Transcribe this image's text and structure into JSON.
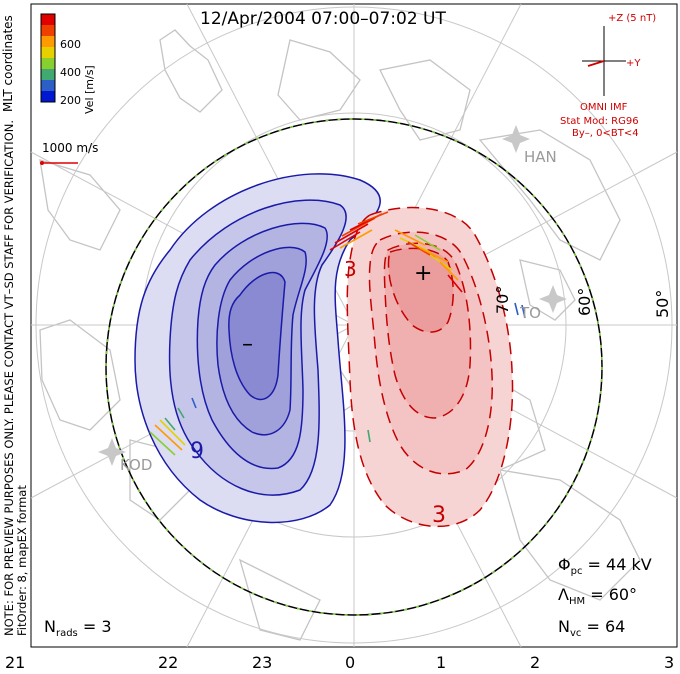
{
  "title": "12/Apr/2004 07:00–07:02 UT",
  "colorbar": {
    "label": "Vel [m/s]",
    "ticks": [
      "600",
      "400",
      "200"
    ],
    "colors": [
      "#e00000",
      "#f04000",
      "#ff9a00",
      "#e6d000",
      "#88d030",
      "#40a870",
      "#2c5ec8",
      "#0018d0"
    ]
  },
  "coord_label": "MLT coordinates",
  "scale_vector_label": "1000 m/s",
  "imf": {
    "bz_label": "+Z (5 nT)",
    "by_label": "+Y",
    "source": "OMNI IMF",
    "model": "Stat Mod: RG96",
    "condition": "By–, 0<BT<4"
  },
  "note_line1": "NOTE: FOR PREVIEW PURPOSES ONLY. PLEASE CONTACT VT–SD STAFF FOR VERIFICATION.",
  "note_line2": "FitOrder: 8, mapEX format",
  "stats": {
    "phi_symbol": "Φ",
    "phi_sub": "pc",
    "phi_value": " = 44 kV",
    "lambda_symbol": "Λ",
    "lambda_sub": "HM",
    "lambda_value": " = 60°",
    "nvc_symbol": "N",
    "nvc_sub": "vc",
    "nvc_value": " = 64",
    "nrads_symbol": "N",
    "nrads_sub": "rads",
    "nrads_value": " = 3"
  },
  "latitude_labels": [
    "70°",
    "60°",
    "50°"
  ],
  "station_labels": [
    "HAN",
    "KOD",
    "TO"
  ],
  "contour_labels": [
    "3",
    "3",
    "9"
  ],
  "pole_markers": {
    "negative": "–",
    "positive": "+"
  },
  "chart_data": {
    "type": "polar convection map",
    "x_axis_ticks": [
      "21",
      "22",
      "23",
      "0",
      "1",
      "2",
      "3"
    ],
    "potential_cells": [
      {
        "sign": "negative",
        "mlt": 23.3,
        "contours": 6
      },
      {
        "sign": "positive",
        "mlt": 0.8,
        "contours": 5
      }
    ],
    "polar_cap_potential_kv": 44,
    "heppner_maynard_boundary_deg": 60,
    "vector_count": 64,
    "radar_count": 3
  }
}
